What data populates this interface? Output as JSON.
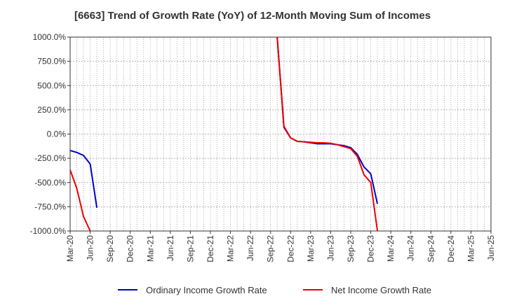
{
  "chart_data": {
    "type": "line",
    "title": "[6663]  Trend of Growth Rate (YoY) of 12-Month Moving Sum of Incomes",
    "xlabel": "",
    "ylabel": "",
    "ylim": [
      -1000,
      1000
    ],
    "ytick_values": [
      1000,
      750,
      500,
      250,
      0,
      -250,
      -500,
      -750,
      -1000
    ],
    "ytick_labels": [
      "1000.0%",
      "750.0%",
      "500.0%",
      "250.0%",
      "0.0%",
      "-250.0%",
      "-500.0%",
      "-750.0%",
      "-1000.0%"
    ],
    "x_categories": [
      "Mar-20",
      "Apr-20",
      "May-20",
      "Jun-20",
      "Jul-20",
      "Aug-20",
      "Sep-20",
      "Oct-20",
      "Nov-20",
      "Dec-20",
      "Jan-21",
      "Feb-21",
      "Mar-21",
      "Apr-21",
      "May-21",
      "Jun-21",
      "Jul-21",
      "Aug-21",
      "Sep-21",
      "Oct-21",
      "Nov-21",
      "Dec-21",
      "Jan-22",
      "Feb-22",
      "Mar-22",
      "Apr-22",
      "May-22",
      "Jun-22",
      "Jul-22",
      "Aug-22",
      "Sep-22",
      "Oct-22",
      "Nov-22",
      "Dec-22",
      "Jan-23",
      "Feb-23",
      "Mar-23",
      "Apr-23",
      "May-23",
      "Jun-23",
      "Jul-23",
      "Aug-23",
      "Sep-23",
      "Oct-23",
      "Nov-23",
      "Dec-23",
      "Jan-24",
      "Feb-24",
      "Mar-24",
      "Apr-24",
      "May-24",
      "Jun-24",
      "Jul-24",
      "Aug-24",
      "Sep-24",
      "Oct-24",
      "Nov-24",
      "Dec-24",
      "Jan-25",
      "Feb-25",
      "Mar-25",
      "Apr-25",
      "May-25",
      "Jun-25"
    ],
    "xtick_labels": [
      "Mar-20",
      "Jun-20",
      "Sep-20",
      "Dec-20",
      "Mar-21",
      "Jun-21",
      "Sep-21",
      "Dec-21",
      "Mar-22",
      "Jun-22",
      "Sep-22",
      "Dec-22",
      "Mar-23",
      "Jun-23",
      "Sep-23",
      "Dec-23",
      "Mar-24",
      "Jun-24",
      "Sep-24",
      "Dec-24",
      "Mar-25",
      "Jun-25"
    ],
    "grid": true,
    "legend_position": "bottom",
    "series": [
      {
        "name": "Ordinary Income Growth Rate",
        "color": "#0000cc",
        "values": [
          -170,
          -190,
          -220,
          -310,
          -760,
          null,
          null,
          null,
          null,
          null,
          null,
          null,
          null,
          null,
          null,
          null,
          null,
          null,
          null,
          null,
          null,
          null,
          null,
          null,
          null,
          null,
          null,
          null,
          null,
          null,
          null,
          1000,
          70,
          -40,
          -75,
          -80,
          -90,
          -100,
          -100,
          -100,
          -110,
          -120,
          -140,
          -210,
          -340,
          -410,
          -720,
          null,
          null,
          null,
          null,
          null,
          null,
          null,
          null,
          null,
          null,
          null,
          null,
          null,
          null,
          null,
          null,
          null
        ]
      },
      {
        "name": "Net Income Growth Rate",
        "color": "#ee0000",
        "values": [
          -370,
          -560,
          -850,
          -1000,
          null,
          null,
          null,
          null,
          null,
          null,
          null,
          null,
          null,
          null,
          null,
          null,
          null,
          null,
          null,
          null,
          null,
          null,
          null,
          null,
          null,
          null,
          null,
          null,
          null,
          null,
          null,
          1000,
          80,
          -40,
          -75,
          -80,
          -85,
          -90,
          -90,
          -95,
          -110,
          -130,
          -150,
          -230,
          -420,
          -500,
          -1000,
          null,
          null,
          null,
          null,
          null,
          null,
          null,
          null,
          null,
          null,
          null,
          null,
          null,
          null,
          null,
          null,
          null
        ]
      }
    ]
  }
}
